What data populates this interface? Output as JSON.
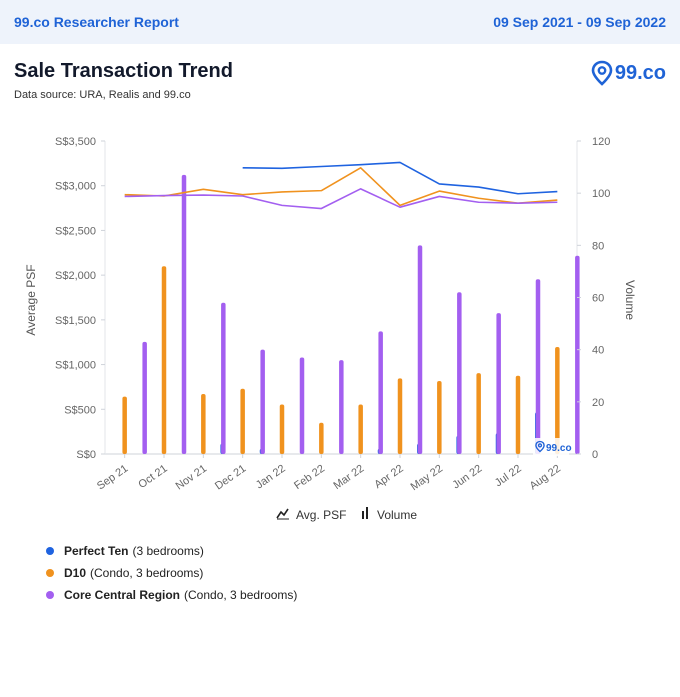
{
  "header": {
    "brand": "99.co Researcher Report",
    "date_range": "09 Sep 2021 - 09 Sep 2022"
  },
  "page": {
    "title": "Sale Transaction Trend",
    "subtitle": "Data source: URA, Realis and 99.co",
    "logo_text": "99.co",
    "watermark_text": "99.co"
  },
  "chart_data": {
    "type": "bar+line",
    "categories": [
      "Sep 21",
      "Oct 21",
      "Nov 21",
      "Dec 21",
      "Jan 22",
      "Feb 22",
      "Mar 22",
      "Apr 22",
      "May 22",
      "Jun 22",
      "Jul 22",
      "Aug 22"
    ],
    "ylabel_left": "Average PSF",
    "ylabel_right": "Volume",
    "yleft_ticks": [
      "S$0",
      "S$500",
      "S$1,000",
      "S$1,500",
      "S$2,000",
      "S$2,500",
      "S$3,000",
      "S$3,500"
    ],
    "yleft_range": [
      0,
      3500
    ],
    "yright_ticks": [
      "0",
      "20",
      "40",
      "60",
      "80",
      "100",
      "120"
    ],
    "yright_range": [
      0,
      120
    ],
    "legend": {
      "line_label": "Avg. PSF",
      "bar_label": "Volume"
    },
    "series": [
      {
        "name": "Perfect Ten",
        "detail": "(3 bedrooms)",
        "color": "#1f63e0",
        "volume": [
          0,
          0,
          0,
          4,
          2,
          0,
          0,
          2,
          4,
          7,
          8,
          16
        ],
        "psf": [
          null,
          null,
          null,
          3200,
          3195,
          3215,
          3235,
          3260,
          3020,
          2985,
          2910,
          2935
        ]
      },
      {
        "name": "D10",
        "detail": "(Condo, 3 bedrooms)",
        "color": "#f0921e",
        "volume": [
          22,
          72,
          23,
          25,
          19,
          12,
          19,
          29,
          28,
          31,
          30,
          41
        ],
        "psf": [
          2900,
          2885,
          2960,
          2900,
          2930,
          2945,
          3200,
          2780,
          2940,
          2860,
          2805,
          2840
        ]
      },
      {
        "name": "Core Central Region",
        "detail": "(Condo, 3 bedrooms)",
        "color": "#a35ff0",
        "volume": [
          43,
          107,
          58,
          40,
          37,
          36,
          47,
          80,
          62,
          54,
          67,
          76
        ],
        "psf": [
          2880,
          2890,
          2895,
          2885,
          2780,
          2745,
          2965,
          2760,
          2880,
          2815,
          2805,
          2815
        ]
      }
    ]
  }
}
